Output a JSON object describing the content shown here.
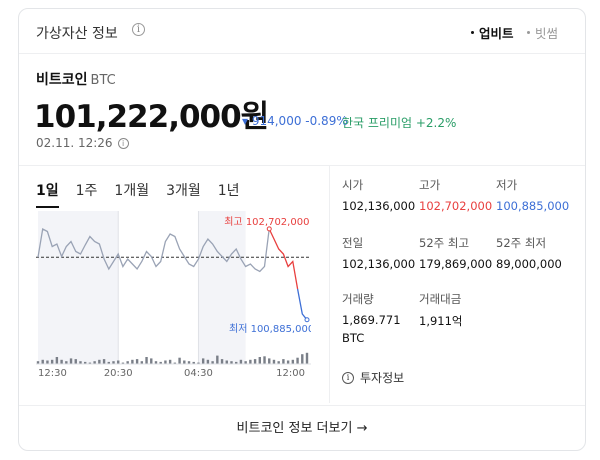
{
  "header": {
    "title": "가상자산 정보",
    "info_icon": "info-icon",
    "exchanges": [
      "업비트",
      "빗썸"
    ]
  },
  "coin": {
    "name": "비트코인",
    "symbol": "BTC",
    "price": "101,222,000원",
    "change": "▾ 914,000 -0.89%",
    "premium": "한국 프리미엄 +2.2%",
    "timestamp": "02.11. 12:26"
  },
  "tabs": [
    "1일",
    "1주",
    "1개월",
    "3개월",
    "1년"
  ],
  "chart_data": {
    "type": "line",
    "x_ticks": [
      "12:30",
      "20:30",
      "04:30",
      "12:00"
    ],
    "values": [
      102136000,
      102700000,
      102650000,
      102350000,
      102400000,
      102150000,
      102350000,
      102450000,
      102250000,
      102200000,
      102380000,
      102550000,
      102450000,
      102400000,
      102100000,
      101900000,
      102050000,
      102200000,
      101950000,
      102100000,
      102000000,
      101900000,
      102050000,
      102250000,
      102150000,
      101950000,
      102050000,
      102450000,
      102600000,
      102550000,
      102300000,
      102150000,
      102000000,
      101950000,
      102100000,
      102350000,
      102500000,
      102400000,
      102250000,
      102150000,
      102050000,
      102200000,
      102300000,
      102100000,
      101950000,
      102000000,
      101900000,
      101850000,
      101950000,
      102702000,
      102500000,
      102300000,
      102200000,
      101950000,
      102050000,
      101500000,
      101000000,
      100885000
    ],
    "volumes": [
      0.2,
      0.3,
      0.25,
      0.3,
      0.5,
      0.3,
      0.2,
      0.4,
      0.35,
      0.2,
      0.15,
      0.1,
      0.2,
      0.3,
      0.35,
      0.15,
      0.2,
      0.25,
      0.1,
      0.2,
      0.3,
      0.35,
      0.2,
      0.5,
      0.4,
      0.2,
      0.15,
      0.25,
      0.3,
      0.1,
      0.45,
      0.25,
      0.2,
      0.15,
      0.1,
      0.4,
      0.3,
      0.2,
      0.6,
      0.35,
      0.25,
      0.2,
      0.15,
      0.3,
      0.2,
      0.3,
      0.35,
      0.5,
      0.55,
      0.4,
      0.3,
      0.2,
      0.35,
      0.25,
      0.3,
      0.45,
      0.7,
      0.8
    ],
    "reference": 102136000,
    "high_label": "최고 102,702,000",
    "low_label": "최저 100,885,000",
    "colors": {
      "line": "#9aa3b5",
      "high": "#e8403f",
      "low": "#3d6fd6",
      "volume": "#7a7f88"
    }
  },
  "stats": [
    {
      "label": "시가",
      "value": "102,136,000",
      "color": ""
    },
    {
      "label": "고가",
      "value": "102,702,000",
      "color": "red"
    },
    {
      "label": "저가",
      "value": "100,885,000",
      "color": "blue"
    },
    {
      "label": "전일",
      "value": "102,136,000",
      "color": ""
    },
    {
      "label": "52주 최고",
      "value": "179,869,000",
      "color": ""
    },
    {
      "label": "52주 최저",
      "value": "89,000,000",
      "color": ""
    },
    {
      "label": "거래량",
      "value": "1,869.771",
      "value2": "BTC",
      "color": ""
    },
    {
      "label": "거래대금",
      "value": "1,911억",
      "color": ""
    }
  ],
  "invest_info": "투자정보",
  "more_link": "비트코인 정보 더보기 →"
}
